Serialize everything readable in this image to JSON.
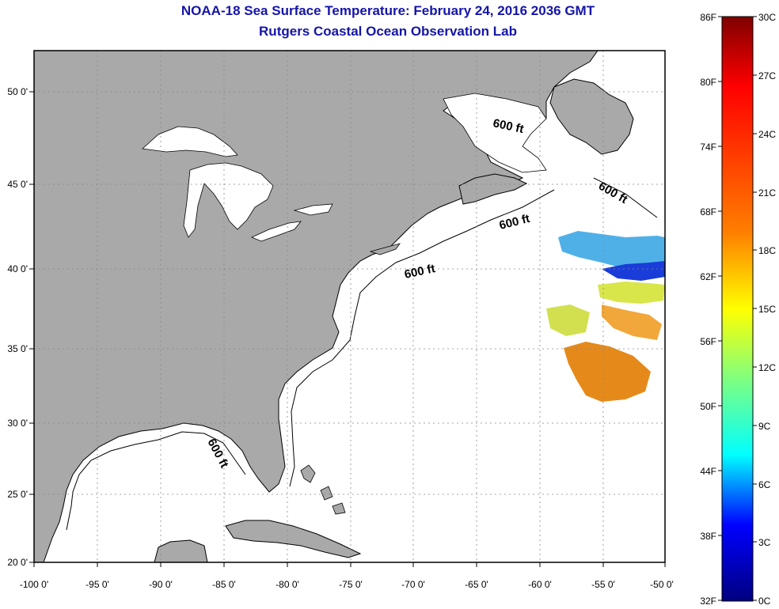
{
  "title": "NOAA-18 Sea Surface Temperature:  February 24, 2016 2036 GMT",
  "subtitle": "Rutgers Coastal Ocean Observation Lab",
  "map": {
    "lon_range": [
      -100,
      -50
    ],
    "lat_range": [
      20,
      52.5
    ],
    "lat_ticks": [
      "50 0'",
      "45 0'",
      "40 0'",
      "35 0'",
      "30 0'",
      "25 0'",
      "20 0'"
    ],
    "lon_ticks": [
      "-100 0'",
      "-95 0'",
      "-90 0'",
      "-85 0'",
      "-80 0'",
      "-75 0'",
      "-70 0'",
      "-65 0'",
      "-60 0'",
      "-55 0'",
      "-50 0'"
    ],
    "depth_labels": [
      "600 ft",
      "600 ft",
      "600 ft",
      "600 ft",
      "600 ft"
    ],
    "grid": true,
    "land_color": "#a9a9a9",
    "ocean_color": "#ffffff"
  },
  "colorbar": {
    "fahrenheit": [
      "86F",
      "80F",
      "74F",
      "68F",
      "62F",
      "56F",
      "50F",
      "44F",
      "38F",
      "32F"
    ],
    "celsius": [
      "30C",
      "27C",
      "24C",
      "21C",
      "18C",
      "15C",
      "12C",
      "9C",
      "6C",
      "3C",
      "0C"
    ],
    "colors": [
      "#7f0000",
      "#ff0000",
      "#ff7f00",
      "#ffff00",
      "#7fff7f",
      "#00ffff",
      "#007fff",
      "#0000ff",
      "#00007f"
    ]
  }
}
